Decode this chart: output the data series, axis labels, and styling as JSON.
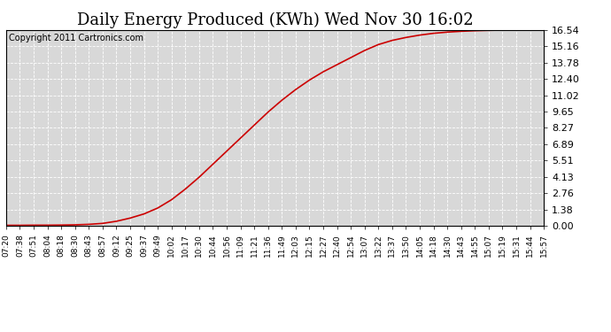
{
  "title": "Daily Energy Produced (KWh) Wed Nov 30 16:02",
  "copyright_text": "Copyright 2011 Cartronics.com",
  "line_color": "#cc0000",
  "plot_bg_color": "#d8d8d8",
  "fig_bg_color": "#ffffff",
  "grid_color": "#ffffff",
  "grid_color2": "#aaaaaa",
  "yticks": [
    0.0,
    1.38,
    2.76,
    4.13,
    5.51,
    6.89,
    8.27,
    9.65,
    11.02,
    12.4,
    13.78,
    15.16,
    16.54
  ],
  "ymax": 16.54,
  "xtick_labels": [
    "07:20",
    "07:38",
    "07:51",
    "08:04",
    "08:18",
    "08:30",
    "08:43",
    "08:57",
    "09:12",
    "09:25",
    "09:37",
    "09:49",
    "10:02",
    "10:17",
    "10:30",
    "10:44",
    "10:56",
    "11:09",
    "11:21",
    "11:36",
    "11:49",
    "12:03",
    "12:15",
    "12:27",
    "12:40",
    "12:54",
    "13:07",
    "13:22",
    "13:37",
    "13:50",
    "14:05",
    "14:18",
    "14:30",
    "14:43",
    "14:55",
    "15:07",
    "15:19",
    "15:31",
    "15:44",
    "15:57"
  ],
  "ctrl_x": [
    0,
    1,
    2,
    3,
    4,
    5,
    6,
    7,
    8,
    9,
    10,
    11,
    12,
    13,
    14,
    15,
    16,
    17,
    18,
    19,
    20,
    21,
    22,
    23,
    24,
    25,
    26,
    27,
    28,
    29,
    30,
    31,
    32,
    33,
    34,
    35,
    36,
    37,
    38,
    39
  ],
  "ctrl_y": [
    0.04,
    0.04,
    0.05,
    0.05,
    0.06,
    0.08,
    0.12,
    0.2,
    0.38,
    0.65,
    1.0,
    1.5,
    2.2,
    3.1,
    4.1,
    5.2,
    6.3,
    7.4,
    8.5,
    9.6,
    10.6,
    11.5,
    12.3,
    13.0,
    13.6,
    14.2,
    14.8,
    15.3,
    15.65,
    15.9,
    16.1,
    16.25,
    16.35,
    16.42,
    16.47,
    16.5,
    16.52,
    16.53,
    16.54,
    16.54
  ],
  "title_fontsize": 13,
  "copyright_fontsize": 7,
  "tick_fontsize": 6.5,
  "ytick_fontsize": 8,
  "line_width": 1.2,
  "figsize": [
    6.9,
    3.75
  ],
  "dpi": 100
}
